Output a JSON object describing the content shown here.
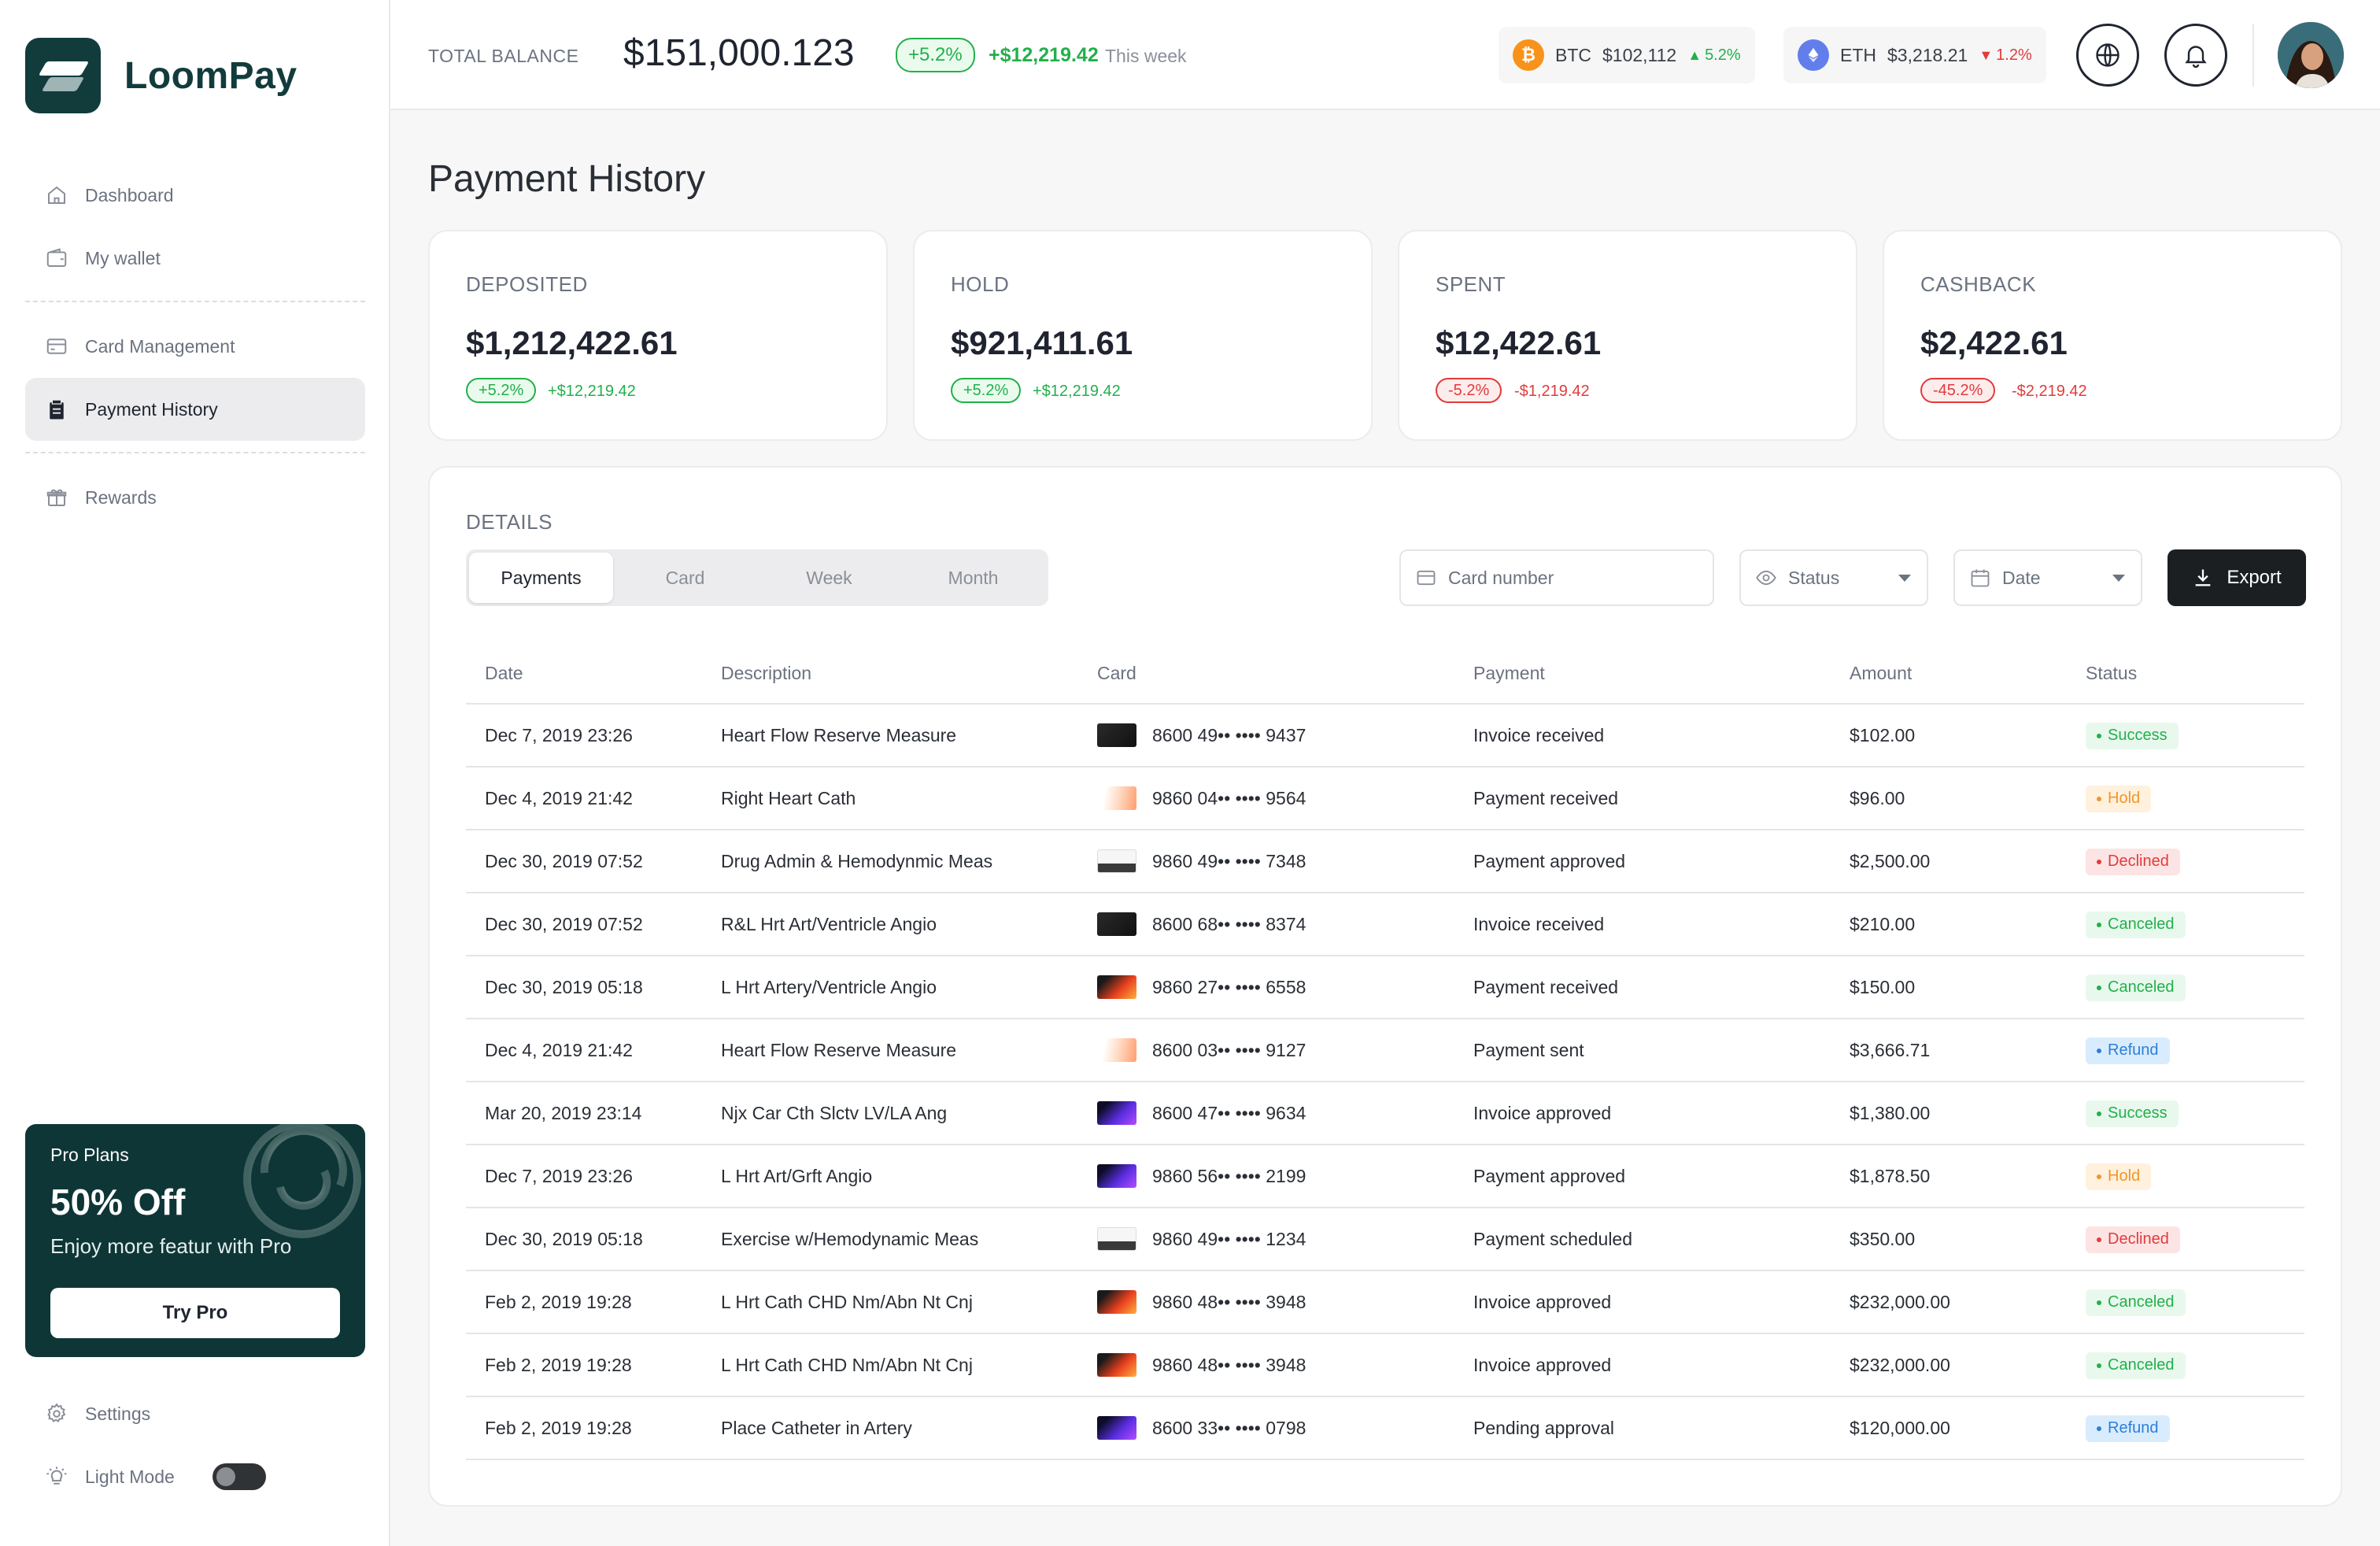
{
  "app": {
    "name": "LoomPay"
  },
  "sidebar": {
    "items": [
      {
        "label": "Dashboard",
        "icon": "home-icon"
      },
      {
        "label": "My wallet",
        "icon": "wallet-icon"
      },
      {
        "label": "Card Management",
        "icon": "card-icon"
      },
      {
        "label": "Payment History",
        "icon": "clipboard-icon",
        "active": true
      },
      {
        "label": "Rewards",
        "icon": "gift-icon"
      }
    ],
    "promo": {
      "eyebrow": "Pro Plans",
      "title": "50% Off",
      "text": "Enjoy more featur with Pro",
      "button": "Try Pro"
    },
    "settings_label": "Settings",
    "light_mode_label": "Light Mode",
    "light_mode_on": false
  },
  "topbar": {
    "balance_label": "TOTAL BALANCE",
    "balance_value": "$151,000.123",
    "change_pct": "+5.2%",
    "change_amount": "+$12,219.42",
    "change_period": "This week",
    "coins": [
      {
        "symbol": "BTC",
        "price": "$102,112",
        "change": "5.2%",
        "direction": "up",
        "color": "#f7931a"
      },
      {
        "symbol": "ETH",
        "price": "$3,218.21",
        "change": "1.2%",
        "direction": "down",
        "color": "#627eea"
      }
    ]
  },
  "page": {
    "title": "Payment History"
  },
  "stats": [
    {
      "label": "DEPOSITED",
      "value": "$1,212,422.61",
      "pct": "+5.2%",
      "delta": "+$12,219.42",
      "trend": "pos"
    },
    {
      "label": "HOLD",
      "value": "$921,411.61",
      "pct": "+5.2%",
      "delta": "+$12,219.42",
      "trend": "pos"
    },
    {
      "label": "SPENT",
      "value": "$12,422.61",
      "pct": "-5.2%",
      "delta": "-$1,219.42",
      "trend": "neg"
    },
    {
      "label": "CASHBACK",
      "value": "$2,422.61",
      "pct": "-45.2%",
      "delta": "-$2,219.42",
      "trend": "neg"
    }
  ],
  "details": {
    "label": "DETAILS",
    "tabs": [
      "Payments",
      "Card",
      "Week",
      "Month"
    ],
    "active_tab": "Payments",
    "card_number_placeholder": "Card number",
    "status_placeholder": "Status",
    "date_placeholder": "Date",
    "export_label": "Export",
    "columns": [
      "Date",
      "Description",
      "Card",
      "Payment",
      "Amount",
      "Status"
    ],
    "rows": [
      {
        "date": "Dec 7, 2019 23:26",
        "description": "Heart Flow Reserve Measure",
        "card_style": "black",
        "card": "8600 49•• •••• 9437",
        "payment": "Invoice received",
        "amount": "$102.00",
        "status": "Success"
      },
      {
        "date": "Dec 4, 2019 21:42",
        "description": "Right Heart Cath",
        "card_style": "peach",
        "card": "9860 04•• •••• 9564",
        "payment": "Payment received",
        "amount": "$96.00",
        "status": "Hold"
      },
      {
        "date": "Dec 30, 2019 07:52",
        "description": "Drug Admin & Hemodynmic Meas",
        "card_style": "white",
        "card": "9860 49•• •••• 7348",
        "payment": "Payment approved",
        "amount": "$2,500.00",
        "status": "Declined"
      },
      {
        "date": "Dec 30, 2019 07:52",
        "description": "R&L Hrt Art/Ventricle Angio",
        "card_style": "black",
        "card": "8600 68•• •••• 8374",
        "payment": "Invoice received",
        "amount": "$210.00",
        "status": "Canceled"
      },
      {
        "date": "Dec 30, 2019 05:18",
        "description": "L Hrt Artery/Ventricle Angio",
        "card_style": "fire",
        "card": "9860 27•• •••• 6558",
        "payment": "Payment received",
        "amount": "$150.00",
        "status": "Canceled"
      },
      {
        "date": "Dec 4, 2019 21:42",
        "description": "Heart Flow Reserve Measure",
        "card_style": "peach",
        "card": "8600 03•• •••• 9127",
        "payment": "Payment sent",
        "amount": "$3,666.71",
        "status": "Refund"
      },
      {
        "date": "Mar 20, 2019 23:14",
        "description": "Njx Car Cth Slctv LV/LA Ang",
        "card_style": "purple",
        "card": "8600 47•• •••• 9634",
        "payment": "Invoice approved",
        "amount": "$1,380.00",
        "status": "Success"
      },
      {
        "date": "Dec 7, 2019 23:26",
        "description": "L Hrt Art/Grft Angio",
        "card_style": "purple",
        "card": "9860 56•• •••• 2199",
        "payment": "Payment approved",
        "amount": "$1,878.50",
        "status": "Hold"
      },
      {
        "date": "Dec 30, 2019 05:18",
        "description": "Exercise w/Hemodynamic Meas",
        "card_style": "white",
        "card": "9860 49•• •••• 1234",
        "payment": "Payment scheduled",
        "amount": "$350.00",
        "status": "Declined"
      },
      {
        "date": "Feb 2, 2019 19:28",
        "description": "L Hrt Cath CHD Nm/Abn Nt Cnj",
        "card_style": "fire",
        "card": "9860 48•• •••• 3948",
        "payment": "Invoice approved",
        "amount": "$232,000.00",
        "status": "Canceled"
      },
      {
        "date": "Feb 2, 2019 19:28",
        "description": "L Hrt Cath CHD Nm/Abn Nt Cnj",
        "card_style": "fire",
        "card": "9860 48•• •••• 3948",
        "payment": "Invoice approved",
        "amount": "$232,000.00",
        "status": "Canceled"
      },
      {
        "date": "Feb 2, 2019 19:28",
        "description": "Place Catheter in Artery",
        "card_style": "purple",
        "card": "8600 33•• •••• 0798",
        "payment": "Pending approval",
        "amount": "$120,000.00",
        "status": "Refund"
      }
    ]
  }
}
